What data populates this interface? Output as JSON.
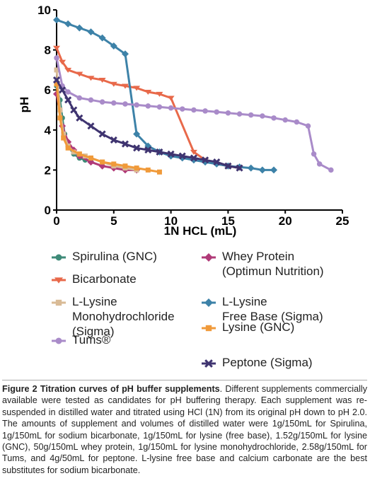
{
  "chart_data": {
    "type": "line",
    "xlabel": "1N HCL (mL)",
    "ylabel": "pH",
    "xlim": [
      0,
      25
    ],
    "ylim": [
      0,
      10
    ],
    "xticks": [
      0,
      5,
      10,
      15,
      20,
      25
    ],
    "yticks": [
      0,
      2,
      4,
      6,
      8,
      10
    ],
    "grid": false,
    "series": [
      {
        "name": "Spirulina (GNC)",
        "color": "#3e8a78",
        "marker": "circle",
        "x": [
          0,
          0.3,
          0.5,
          0.7,
          1,
          1.5,
          2,
          2.5,
          3
        ],
        "y": [
          6.2,
          5.5,
          4.6,
          3.8,
          3.2,
          2.8,
          2.6,
          2.5,
          2.5
        ]
      },
      {
        "name": "Whey Protein (Optimun Nutrition)",
        "color": "#b03a78",
        "marker": "diamond",
        "x": [
          0,
          0.5,
          1,
          1.5,
          2,
          3,
          4,
          5,
          6,
          7
        ],
        "y": [
          5.8,
          4.2,
          3.4,
          3.0,
          2.7,
          2.4,
          2.2,
          2.1,
          2.0,
          2.0
        ]
      },
      {
        "name": "Bicarbonate",
        "color": "#e8694a",
        "marker": "tri-down",
        "x": [
          0,
          0.5,
          1,
          2,
          3,
          4,
          5,
          6,
          7,
          8,
          9,
          10,
          12,
          13,
          14,
          15,
          16
        ],
        "y": [
          8.1,
          7.4,
          7.0,
          6.8,
          6.6,
          6.5,
          6.3,
          6.2,
          6.1,
          5.9,
          5.8,
          5.6,
          2.9,
          2.5,
          2.3,
          2.2,
          2.1
        ]
      },
      {
        "name": "L-Lysine Free Base (Sigma)",
        "color": "#3d82a8",
        "marker": "diamond",
        "x": [
          0,
          1,
          2,
          3,
          4,
          5,
          6,
          7,
          8,
          9,
          10,
          11,
          12,
          13,
          14,
          15,
          16,
          17,
          18,
          19
        ],
        "y": [
          9.5,
          9.3,
          9.1,
          8.9,
          8.6,
          8.2,
          7.8,
          3.8,
          3.2,
          2.9,
          2.7,
          2.6,
          2.5,
          2.4,
          2.3,
          2.2,
          2.15,
          2.1,
          2.0,
          2.0
        ]
      },
      {
        "name": "L-Lysine Monohydrochloride (Sigma)",
        "color": "#d9bb96",
        "marker": "square",
        "x": [
          0,
          0.3,
          0.6,
          1,
          1.5,
          2,
          2.5,
          3,
          4,
          5,
          6,
          7
        ],
        "y": [
          7.0,
          5.0,
          3.8,
          3.2,
          2.9,
          2.8,
          2.7,
          2.6,
          2.4,
          2.2,
          2.1,
          2.0
        ]
      },
      {
        "name": "Lysine (GNC)",
        "color": "#f09a3a",
        "marker": "square",
        "x": [
          0,
          0.3,
          0.6,
          1,
          2,
          3,
          4,
          5,
          6,
          7,
          8,
          9
        ],
        "y": [
          6.3,
          4.6,
          3.6,
          3.1,
          2.8,
          2.6,
          2.4,
          2.3,
          2.2,
          2.1,
          2.0,
          1.9
        ]
      },
      {
        "name": "Tums®",
        "color": "#a98bc9",
        "marker": "circle",
        "x": [
          0,
          0.5,
          1,
          2,
          3,
          4,
          5,
          6,
          7,
          8,
          9,
          10,
          11,
          12,
          13,
          14,
          15,
          16,
          17,
          18,
          19,
          20,
          21,
          22,
          22.5,
          23,
          24
        ],
        "y": [
          7.6,
          6.2,
          5.9,
          5.6,
          5.5,
          5.4,
          5.35,
          5.3,
          5.25,
          5.2,
          5.15,
          5.1,
          5.05,
          5.0,
          4.95,
          4.9,
          4.85,
          4.8,
          4.75,
          4.7,
          4.6,
          4.5,
          4.4,
          4.2,
          2.8,
          2.3,
          2.0
        ]
      },
      {
        "name": "Peptone (Sigma)",
        "color": "#3f3470",
        "marker": "x",
        "x": [
          0,
          0.5,
          1,
          1.5,
          2,
          3,
          4,
          5,
          6,
          7,
          8,
          9,
          10,
          11,
          12,
          13,
          14,
          15,
          16
        ],
        "y": [
          6.5,
          6.0,
          5.5,
          5.0,
          4.6,
          4.2,
          3.8,
          3.5,
          3.3,
          3.1,
          3.0,
          2.9,
          2.8,
          2.7,
          2.6,
          2.5,
          2.4,
          2.2,
          2.1
        ]
      }
    ]
  },
  "legend": {
    "items": [
      {
        "lines": [
          "Spirulina (GNC)"
        ]
      },
      {
        "lines": [
          "Whey Protein",
          "(Optimun Nutrition)"
        ]
      },
      {
        "lines": [
          "Bicarbonate"
        ]
      },
      {
        "lines": [
          "L-Lysine",
          "Free Base (Sigma)"
        ]
      },
      {
        "lines": [
          "L-Lysine",
          "Monohydrochloride",
          "(Sigma)"
        ]
      },
      {
        "lines": [
          "Lysine (GNC)"
        ]
      },
      {
        "lines": [
          "Tums®"
        ]
      },
      {
        "lines": [
          "Peptone (Sigma)"
        ]
      }
    ]
  },
  "caption": {
    "title": "Figure 2 Titration curves of pH buffer supplements",
    "body": ". Different supplements commercially available were tested as candidates for pH buffering therapy. Each supplement was re-suspended in distilled water and titrated using HCl (1N) from its original pH down to pH 2.0. The amounts of supplement and volumes of distilled water were 1g/150mL for Spirulina, 1g/150mL for sodium bicarbonate, 1g/150mL for lysine (free base), 1.52g/150mL for lysine (GNC), 50g/150mL whey protein, 1g/150mL for lysine monohydrochloride, 2.58g/150mL for Tums, and 4g/50mL for peptone. L-lysine free base and calcium carbonate are the best substitutes for sodium bicarbonate."
  }
}
